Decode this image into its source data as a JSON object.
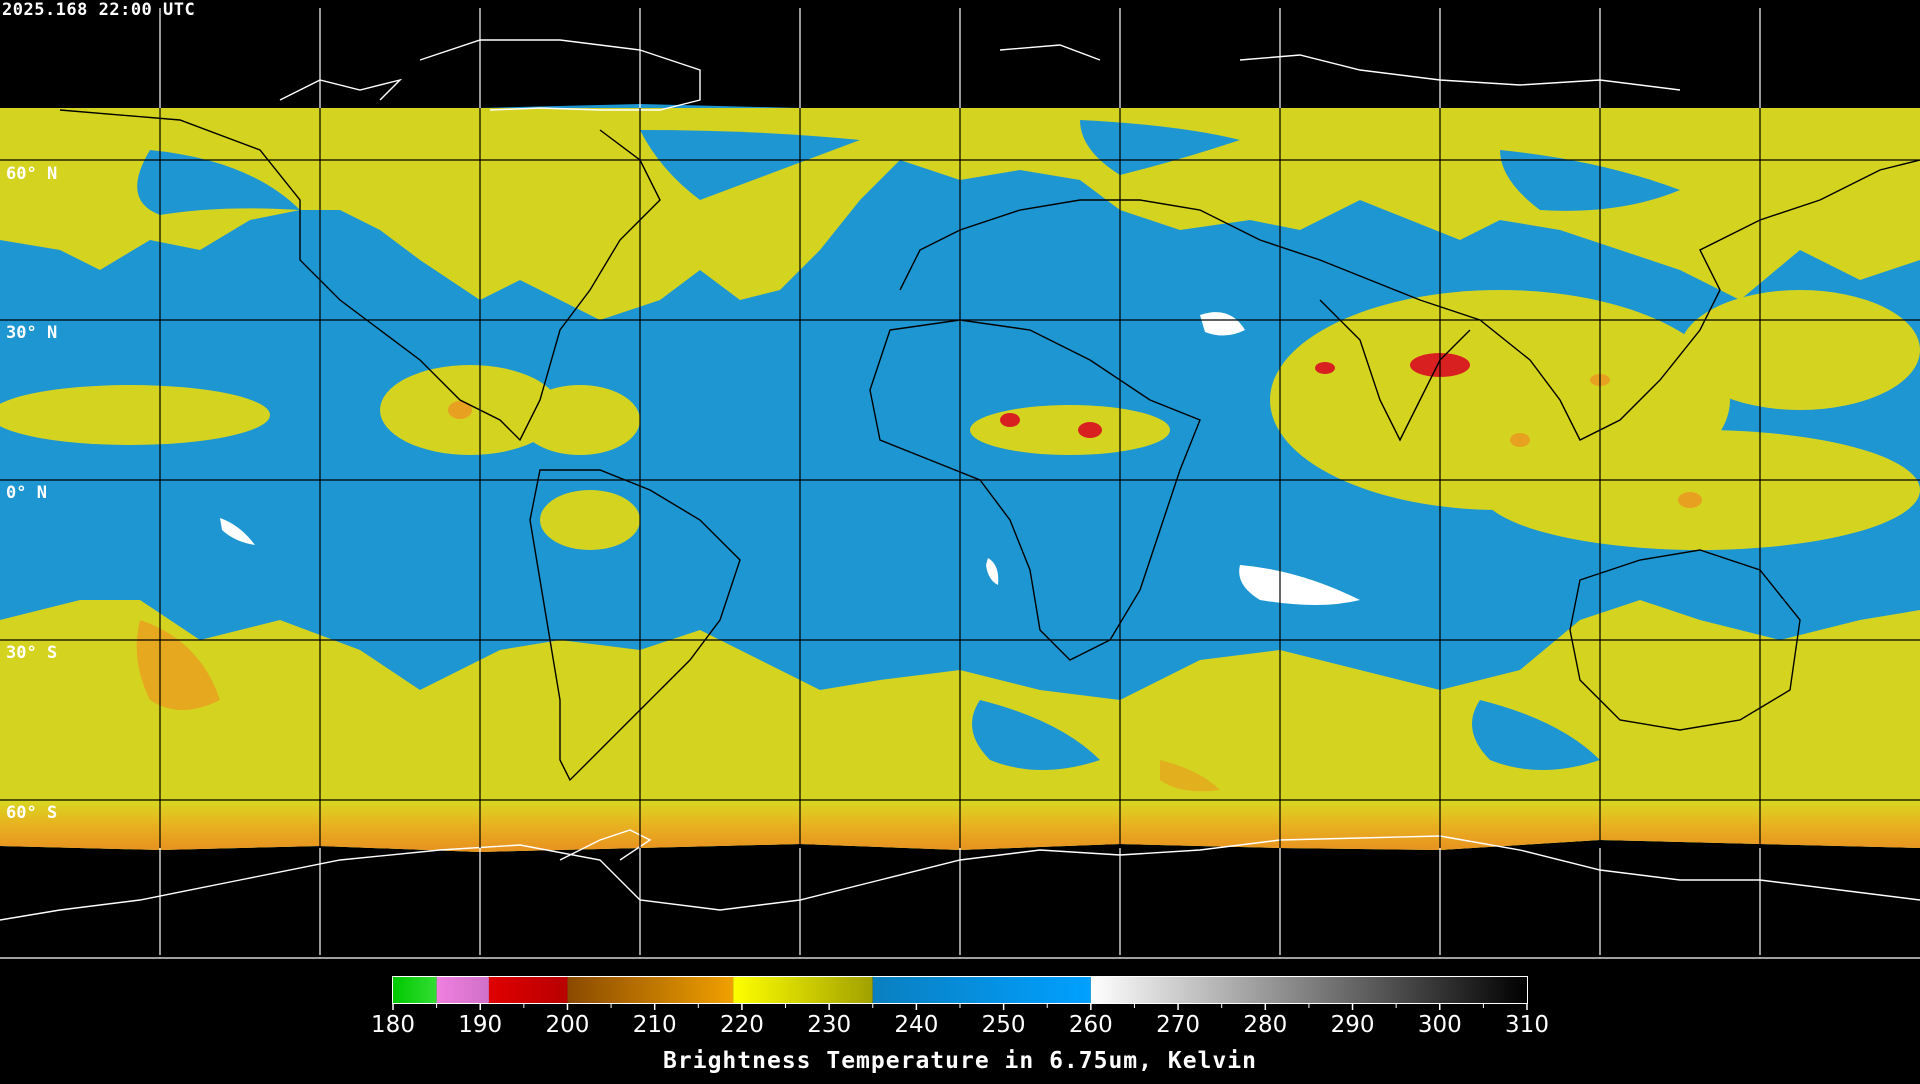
{
  "timestamp": "2025.168 22:00 UTC",
  "lat_labels": [
    "60° N",
    "30° N",
    "0° N",
    "30° S",
    "60° S"
  ],
  "colorbar": {
    "title": "Brightness Temperature in 6.75um, Kelvin",
    "ticks": [
      "180",
      "190",
      "200",
      "210",
      "220",
      "230",
      "240",
      "250",
      "260",
      "270",
      "280",
      "290",
      "300",
      "310"
    ],
    "min": 180,
    "max": 310,
    "segments": [
      {
        "from": 180,
        "to": 185,
        "colors": [
          "#00c800",
          "#33dd33"
        ]
      },
      {
        "from": 185,
        "to": 191,
        "colors": [
          "#f080e0",
          "#d070c8"
        ]
      },
      {
        "from": 191,
        "to": 200,
        "colors": [
          "#e00000",
          "#b80000"
        ]
      },
      {
        "from": 200,
        "to": 219,
        "colors": [
          "#8a4a00",
          "#f0a000"
        ]
      },
      {
        "from": 219,
        "to": 235,
        "colors": [
          "#ffff00",
          "#a0a000"
        ]
      },
      {
        "from": 235,
        "to": 260,
        "colors": [
          "#0a7fc0",
          "#00a0ff"
        ]
      },
      {
        "from": 260,
        "to": 310,
        "colors": [
          "#ffffff",
          "#000000"
        ]
      }
    ]
  },
  "colors": {
    "background": "#000000",
    "blue": "#1e96d2",
    "yellow": "#d4d420",
    "orange": "#e8a020",
    "red": "#d82020",
    "white": "#ffffff",
    "grid": "#000000",
    "coast_dark": "#000000",
    "coast_light": "#ffffff"
  }
}
